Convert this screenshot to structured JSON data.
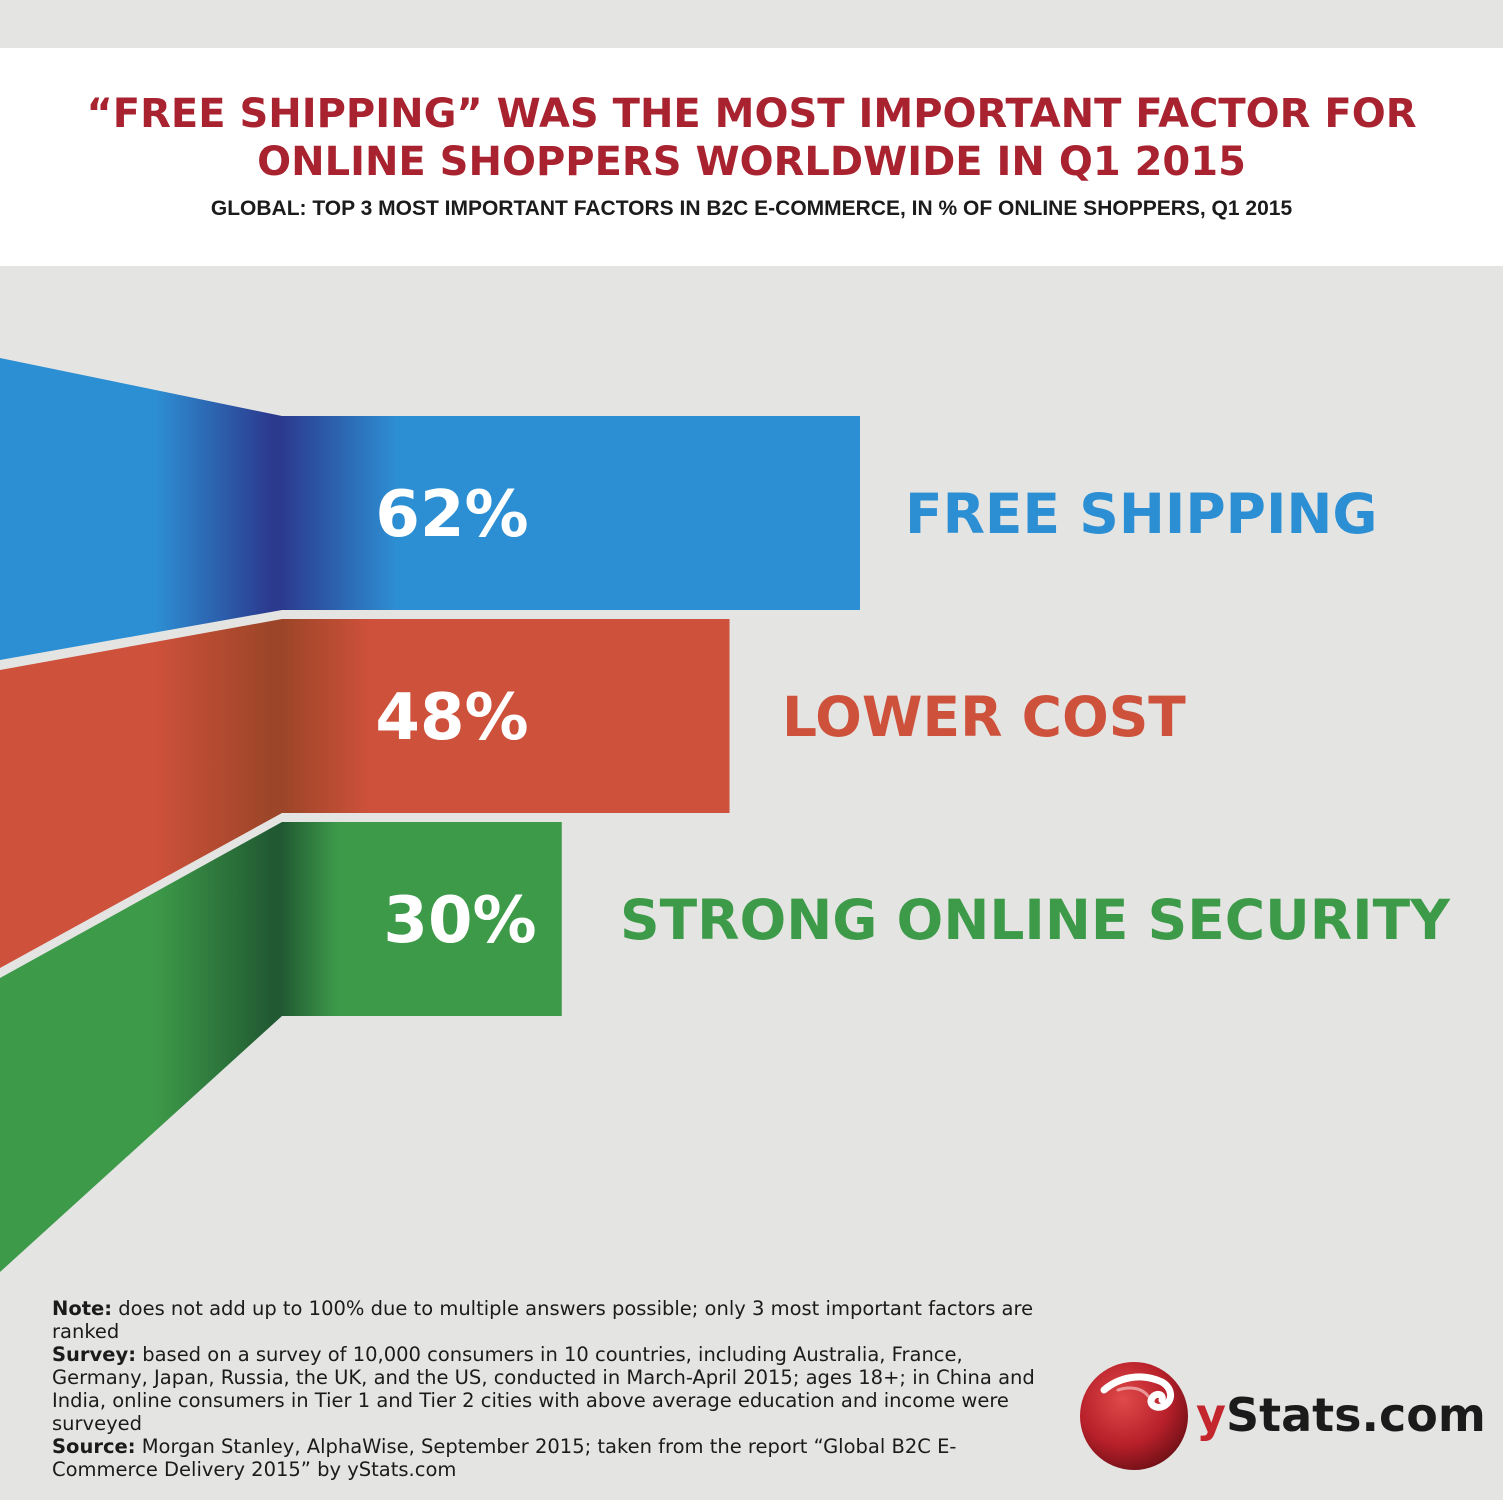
{
  "title": {
    "line1": "“FREE SHIPPING” WAS THE MOST IMPORTANT FACTOR FOR",
    "line2": "ONLINE SHOPPERS WORLDWIDE IN Q1 2015"
  },
  "subtitle": "GLOBAL: TOP 3 MOST IMPORTANT FACTORS IN B2C E-COMMERCE, IN % OF ONLINE SHOPPERS, Q1 2015",
  "chart_data": {
    "type": "bar",
    "orientation": "horizontal",
    "style": "funnel",
    "unit": "%",
    "categories": [
      "FREE SHIPPING",
      "LOWER COST",
      "STRONG ONLINE SECURITY"
    ],
    "values": [
      62,
      48,
      30
    ],
    "value_labels": [
      "62%",
      "48%",
      "30%"
    ],
    "colors": [
      "#2d8fd3",
      "#ce513b",
      "#3d9a49"
    ],
    "shade_colors": [
      "#2c3a8e",
      "#9c4528",
      "#215a32"
    ]
  },
  "notes": {
    "note_label": "Note:",
    "note_text": "does not add up to 100% due to multiple answers possible; only 3 most important factors are ranked",
    "survey_label": "Survey:",
    "survey_text": "based on a survey of 10,000 consumers in 10 countries, including Australia, France, Germany, Japan, Russia, the UK, and the US, conducted in March-April 2015; ages 18+; in China and India, online consumers in Tier 1 and Tier 2 cities with above average education and income were surveyed",
    "source_label": "Source:",
    "source_text": "Morgan Stanley, AlphaWise, September 2015; taken from the report “Global B2C E-Commerce Delivery 2015” by yStats.com"
  },
  "logo": {
    "brand_y": "y",
    "brand_rest": "Stats.com"
  }
}
